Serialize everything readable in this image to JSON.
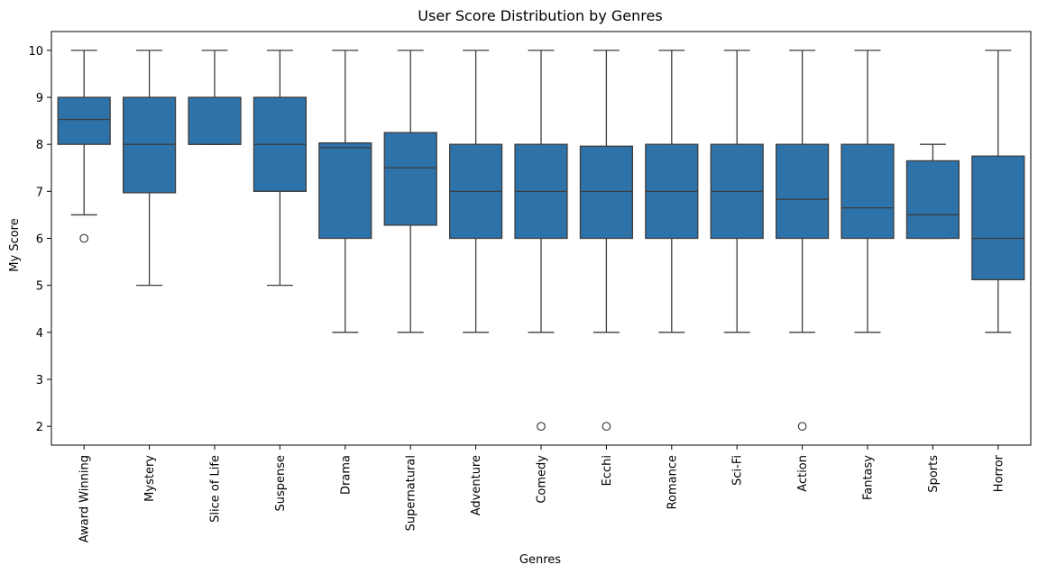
{
  "chart_data": {
    "type": "box",
    "title": "User Score Distribution by Genres",
    "xlabel": "Genres",
    "ylabel": "My Score",
    "ylim": [
      1.6,
      10.4
    ],
    "yticks": [
      2,
      3,
      4,
      5,
      6,
      7,
      8,
      9,
      10
    ],
    "box_color": "#2e72aa",
    "line_color": "#3d3d3d",
    "grid": false,
    "categories": [
      "Award Winning",
      "Mystery",
      "Slice of Life",
      "Suspense",
      "Drama",
      "Supernatural",
      "Adventure",
      "Comedy",
      "Ecchi",
      "Romance",
      "Sci-Fi",
      "Action",
      "Fantasy",
      "Sports",
      "Horror"
    ],
    "boxes": [
      {
        "category": "Award Winning",
        "whisker_low": 6.5,
        "q1": 8.0,
        "median": 8.53,
        "q3": 9.0,
        "whisker_high": 10,
        "outliers": [
          6
        ]
      },
      {
        "category": "Mystery",
        "whisker_low": 5,
        "q1": 6.97,
        "median": 8.0,
        "q3": 9.0,
        "whisker_high": 10,
        "outliers": []
      },
      {
        "category": "Slice of Life",
        "whisker_low": 8,
        "q1": 8.0,
        "median": 8.0,
        "q3": 9.0,
        "whisker_high": 10,
        "outliers": []
      },
      {
        "category": "Suspense",
        "whisker_low": 5,
        "q1": 7.0,
        "median": 8.0,
        "q3": 9.0,
        "whisker_high": 10,
        "outliers": []
      },
      {
        "category": "Drama",
        "whisker_low": 4,
        "q1": 6.0,
        "median": 7.93,
        "q3": 8.03,
        "whisker_high": 10,
        "outliers": []
      },
      {
        "category": "Supernatural",
        "whisker_low": 4,
        "q1": 6.28,
        "median": 7.5,
        "q3": 8.25,
        "whisker_high": 10,
        "outliers": []
      },
      {
        "category": "Adventure",
        "whisker_low": 4,
        "q1": 6.0,
        "median": 7.0,
        "q3": 8.0,
        "whisker_high": 10,
        "outliers": []
      },
      {
        "category": "Comedy",
        "whisker_low": 4,
        "q1": 6.0,
        "median": 7.0,
        "q3": 8.0,
        "whisker_high": 10,
        "outliers": [
          2
        ]
      },
      {
        "category": "Ecchi",
        "whisker_low": 4,
        "q1": 6.0,
        "median": 7.0,
        "q3": 7.96,
        "whisker_high": 10,
        "outliers": [
          2
        ]
      },
      {
        "category": "Romance",
        "whisker_low": 4,
        "q1": 6.0,
        "median": 7.0,
        "q3": 8.0,
        "whisker_high": 10,
        "outliers": []
      },
      {
        "category": "Sci-Fi",
        "whisker_low": 4,
        "q1": 6.0,
        "median": 7.0,
        "q3": 8.0,
        "whisker_high": 10,
        "outliers": []
      },
      {
        "category": "Action",
        "whisker_low": 4,
        "q1": 6.0,
        "median": 6.83,
        "q3": 8.0,
        "whisker_high": 10,
        "outliers": [
          2
        ]
      },
      {
        "category": "Fantasy",
        "whisker_low": 4,
        "q1": 6.0,
        "median": 6.65,
        "q3": 8.0,
        "whisker_high": 10,
        "outliers": []
      },
      {
        "category": "Sports",
        "whisker_low": 6,
        "q1": 6.0,
        "median": 6.5,
        "q3": 7.65,
        "whisker_high": 8,
        "outliers": []
      },
      {
        "category": "Horror",
        "whisker_low": 4,
        "q1": 5.12,
        "median": 6.0,
        "q3": 7.75,
        "whisker_high": 10,
        "outliers": []
      }
    ]
  }
}
